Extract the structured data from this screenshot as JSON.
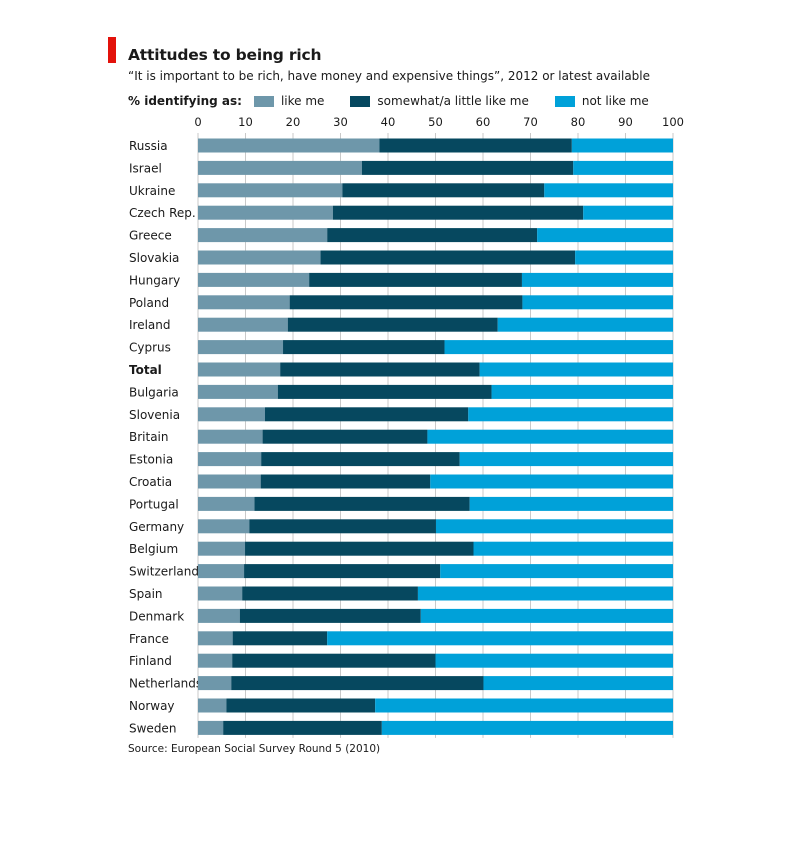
{
  "header": {
    "title": "Attitudes to being rich",
    "subtitle": "“It is important to be rich, have money and expensive things”, 2012 or latest available"
  },
  "legend": {
    "title": "% identifying as:",
    "items": [
      {
        "label": "like me",
        "color": "#6e97aa"
      },
      {
        "label": "somewhat/a little like me",
        "color": "#06485f"
      },
      {
        "label": "not like me",
        "color": "#00a1d9"
      }
    ]
  },
  "source": "Source: European Social Survey Round 5 (2010)",
  "chart_data": {
    "type": "bar",
    "orientation": "horizontal",
    "stacked": true,
    "xlim": [
      0,
      100
    ],
    "xticks": [
      0,
      10,
      20,
      30,
      40,
      50,
      60,
      70,
      80,
      90,
      100
    ],
    "xaxis_position": "top",
    "grid": true,
    "legend_position": "top",
    "categories": [
      "Russia",
      "Israel",
      "Ukraine",
      "Czech Rep.",
      "Greece",
      "Slovakia",
      "Hungary",
      "Poland",
      "Ireland",
      "Cyprus",
      "Total",
      "Bulgaria",
      "Slovenia",
      "Britain",
      "Estonia",
      "Croatia",
      "Portugal",
      "Germany",
      "Belgium",
      "Switzerland",
      "Spain",
      "Denmark",
      "France",
      "Finland",
      "Netherlands",
      "Norway",
      "Sweden"
    ],
    "highlight_category": "Total",
    "series": [
      {
        "name": "like me",
        "color": "#6e97aa",
        "values": [
          38.2,
          34.5,
          30.4,
          28.4,
          27.2,
          25.8,
          23.4,
          19.3,
          18.9,
          17.9,
          17.3,
          16.8,
          14.1,
          13.6,
          13.3,
          13.2,
          11.9,
          10.8,
          9.9,
          9.7,
          9.3,
          8.8,
          7.3,
          7.2,
          7.0,
          6.0,
          5.3
        ]
      },
      {
        "name": "somewhat/a little like me",
        "color": "#06485f",
        "values": [
          40.5,
          44.5,
          42.5,
          52.7,
          44.2,
          53.6,
          44.8,
          49.0,
          44.2,
          34.0,
          42.0,
          45.0,
          42.8,
          34.7,
          41.8,
          35.7,
          45.3,
          39.3,
          48.1,
          41.3,
          37.0,
          38.1,
          19.9,
          42.8,
          53.1,
          31.3,
          33.4
        ]
      },
      {
        "name": "not like me",
        "color": "#00a1d9",
        "values": [
          21.3,
          21.0,
          27.1,
          18.9,
          28.6,
          20.6,
          31.8,
          31.7,
          36.9,
          48.1,
          40.7,
          38.2,
          43.1,
          51.7,
          44.9,
          51.1,
          42.8,
          49.9,
          42.0,
          49.0,
          53.7,
          53.1,
          72.8,
          50.0,
          39.9,
          62.7,
          61.3
        ]
      }
    ]
  }
}
